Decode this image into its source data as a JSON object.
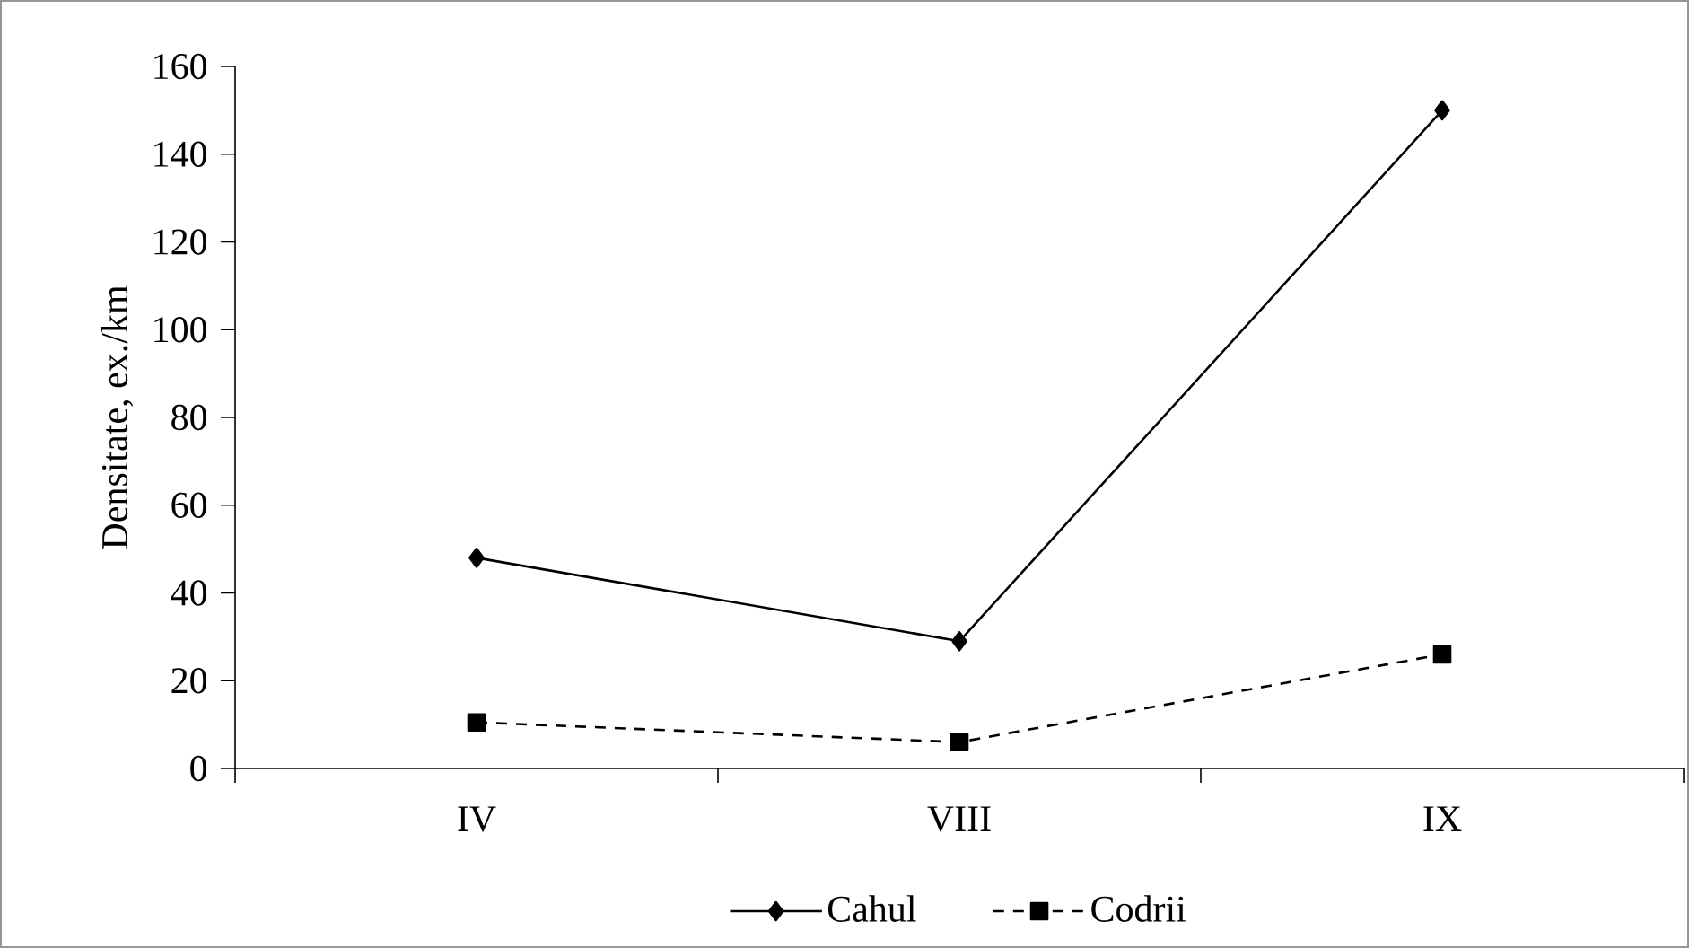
{
  "chart_data": {
    "type": "line",
    "ylabel": "Densitate, ex./km",
    "categories": [
      "IV",
      "VIII",
      "IX"
    ],
    "series": [
      {
        "name": "Cahul",
        "color": "#000000",
        "values": [
          48,
          29,
          150
        ],
        "marker": "diamond",
        "line_style": "solid"
      },
      {
        "name": "Codrii",
        "color": "#000000",
        "values": [
          10.5,
          6,
          26
        ],
        "marker": "square",
        "line_style": "dashed"
      }
    ],
    "ylim": [
      0,
      160
    ],
    "yticks": [
      0,
      20,
      40,
      60,
      80,
      100,
      120,
      140,
      160
    ],
    "grid": false,
    "legend": "bottom"
  }
}
